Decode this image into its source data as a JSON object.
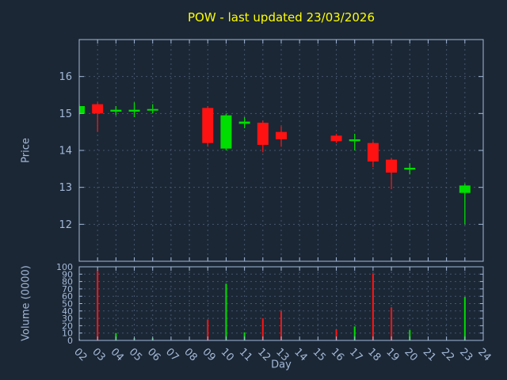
{
  "colors": {
    "background": "#1b2735",
    "title": "#ffff00",
    "axis": "#a3b8d8",
    "grid": "#45566e",
    "up": "#00dd00",
    "down": "#ff1212"
  },
  "chart_data": {
    "type": "candlestick",
    "title": "POW - last updated 23/03/2026",
    "xlabel": "Day",
    "grid": true,
    "price_axis": {
      "label": "Price",
      "ticks": [
        12,
        13,
        14,
        15,
        16
      ],
      "range": [
        11,
        17
      ]
    },
    "volume_axis": {
      "label": "Volume (0000)",
      "ticks": [
        0,
        10,
        20,
        30,
        40,
        50,
        60,
        70,
        80,
        90,
        100
      ],
      "range": [
        0,
        100
      ]
    },
    "x_ticks": [
      "02",
      "03",
      "04",
      "05",
      "06",
      "07",
      "08",
      "09",
      "10",
      "11",
      "12",
      "13",
      "14",
      "15",
      "16",
      "17",
      "18",
      "19",
      "20",
      "21",
      "22",
      "23",
      "24"
    ],
    "x_range": [
      2,
      24
    ],
    "candles": [
      {
        "day": 2,
        "open": 15.0,
        "high": 15.25,
        "low": 14.95,
        "close": 15.2,
        "volume": 2
      },
      {
        "day": 3,
        "open": 15.25,
        "high": 15.3,
        "low": 14.5,
        "close": 15.0,
        "volume": 95
      },
      {
        "day": 4,
        "open": 15.05,
        "high": 15.2,
        "low": 14.95,
        "close": 15.1,
        "volume": 10
      },
      {
        "day": 5,
        "open": 15.05,
        "high": 15.3,
        "low": 14.9,
        "close": 15.1,
        "volume": 3
      },
      {
        "day": 6,
        "open": 15.08,
        "high": 15.25,
        "low": 15.0,
        "close": 15.12,
        "volume": 3
      },
      {
        "day": 9,
        "open": 15.15,
        "high": 15.2,
        "low": 14.1,
        "close": 14.2,
        "volume": 28
      },
      {
        "day": 10,
        "open": 14.05,
        "high": 15.0,
        "low": 14.0,
        "close": 14.95,
        "volume": 77
      },
      {
        "day": 11,
        "open": 14.72,
        "high": 14.9,
        "low": 14.6,
        "close": 14.78,
        "volume": 11
      },
      {
        "day": 12,
        "open": 14.75,
        "high": 14.8,
        "low": 13.95,
        "close": 14.15,
        "volume": 30
      },
      {
        "day": 13,
        "open": 14.5,
        "high": 14.65,
        "low": 14.1,
        "close": 14.3,
        "volume": 40
      },
      {
        "day": 16,
        "open": 14.4,
        "high": 14.45,
        "low": 14.2,
        "close": 14.25,
        "volume": 15
      },
      {
        "day": 17,
        "open": 14.25,
        "high": 14.45,
        "low": 14.0,
        "close": 14.3,
        "volume": 19
      },
      {
        "day": 18,
        "open": 14.2,
        "high": 14.25,
        "low": 13.55,
        "close": 13.7,
        "volume": 91
      },
      {
        "day": 19,
        "open": 13.75,
        "high": 13.8,
        "low": 12.95,
        "close": 13.4,
        "volume": 45
      },
      {
        "day": 20,
        "open": 13.48,
        "high": 13.65,
        "low": 13.35,
        "close": 13.53,
        "volume": 14
      },
      {
        "day": 23,
        "open": 12.85,
        "high": 13.1,
        "low": 12.0,
        "close": 13.05,
        "volume": 59
      }
    ]
  }
}
